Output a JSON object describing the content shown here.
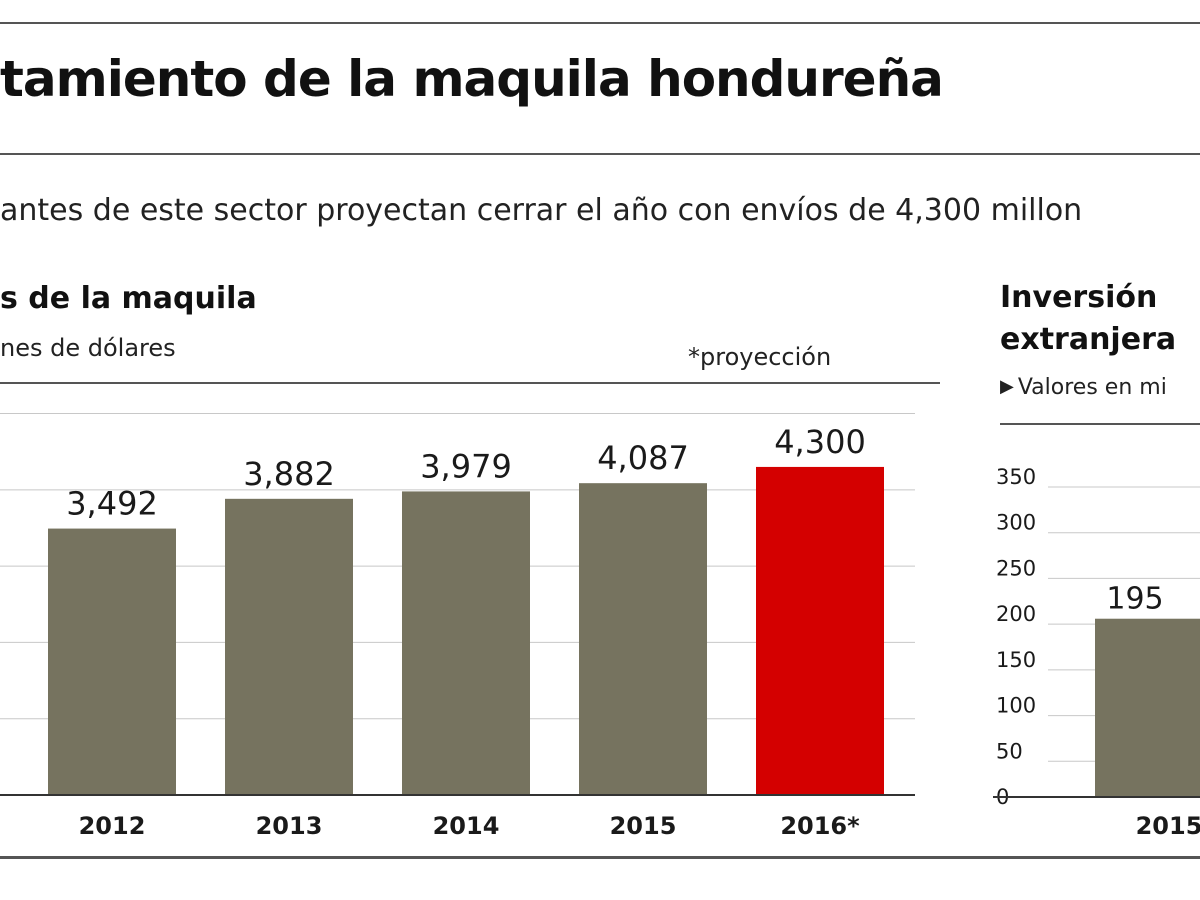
{
  "header": {
    "title": "tamiento de la maquila hondureña",
    "subtitle": "antes de este sector proyectan cerrar el año con envíos de 4,300 millon"
  },
  "colors": {
    "bar": "#76735f",
    "highlight": "#d40000",
    "rule": "#555555",
    "grid": "#c8c8c8",
    "text": "#1a1a1a"
  },
  "chart_data": [
    {
      "type": "bar",
      "title": "s de la maquila",
      "unit": "nes de dólares",
      "note": "*proyección",
      "categories": [
        "2012",
        "2013",
        "2014",
        "2015",
        "2016*"
      ],
      "values": [
        3492,
        3882,
        3979,
        4087,
        4300
      ],
      "value_labels": [
        "3,492",
        "3,882",
        "3,979",
        "4,087",
        "4,300"
      ],
      "highlight_index": 4,
      "ylim": [
        0,
        5400
      ],
      "grid": true
    },
    {
      "type": "bar",
      "title_lines": [
        "Inversión",
        "extranjera"
      ],
      "unit": "Valores en mi",
      "categories": [
        "2015"
      ],
      "values": [
        195
      ],
      "value_labels": [
        "195"
      ],
      "yticks": [
        "350",
        "300",
        "250",
        "200",
        "150",
        "100",
        "50",
        "0"
      ],
      "ylim": [
        0,
        350
      ],
      "grid": true
    }
  ]
}
